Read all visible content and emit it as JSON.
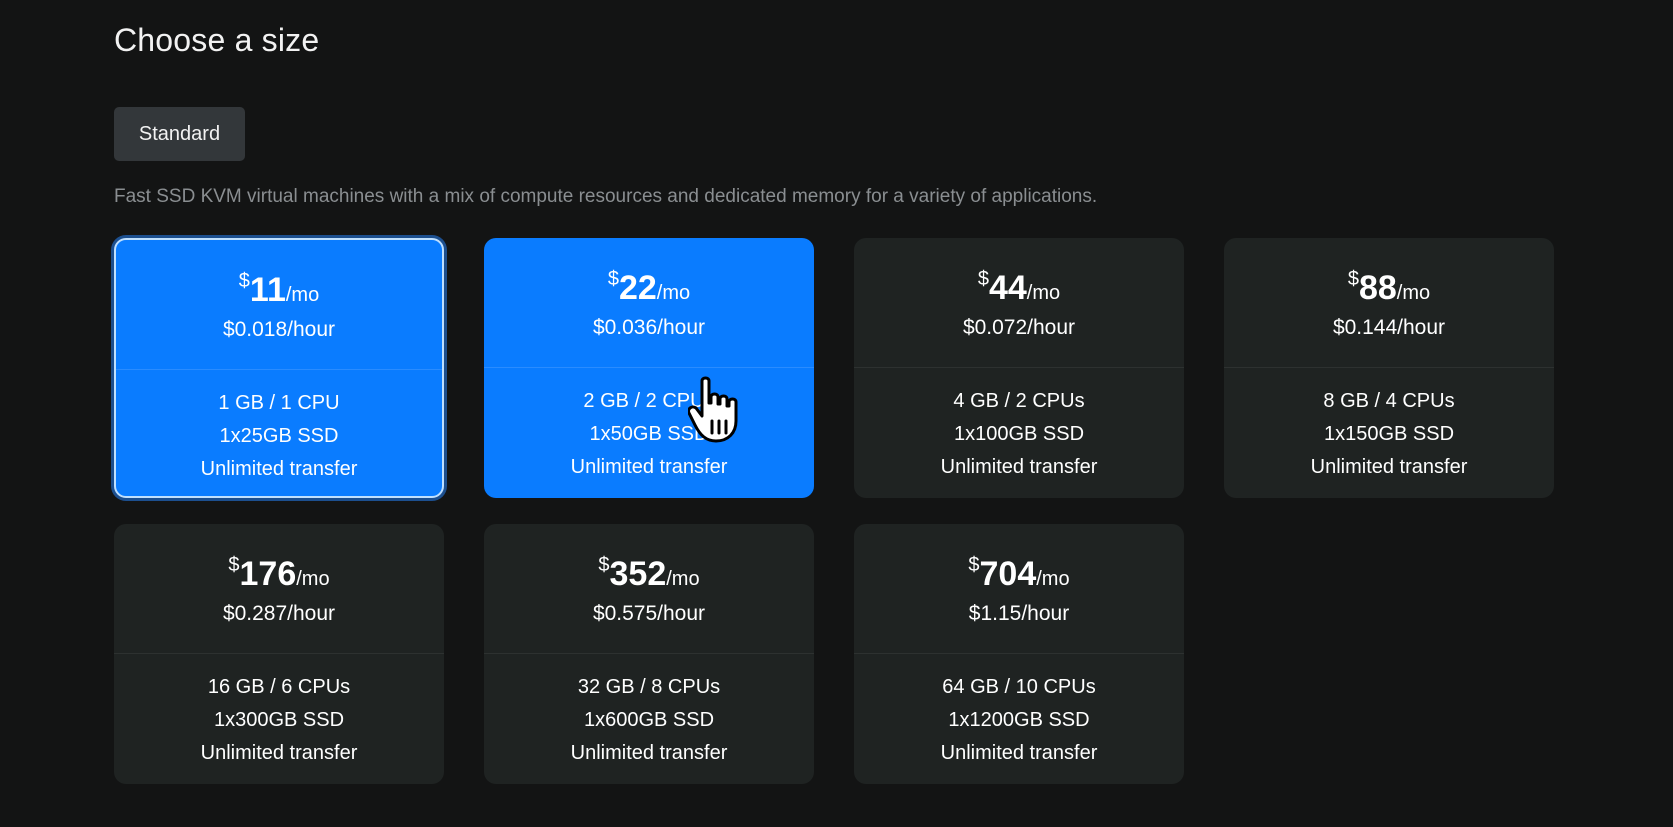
{
  "header": {
    "title": "Choose a size"
  },
  "tabs": [
    {
      "label": "Standard"
    }
  ],
  "description": "Fast SSD KVM virtual machines with a mix of compute resources and dedicated memory for a variety of applications.",
  "plans": [
    {
      "currency": "$",
      "amount": "11",
      "period": "/mo",
      "hourly": "$0.018/hour",
      "memory_cpu": "1 GB / 1 CPU",
      "disk": "1x25GB SSD",
      "transfer": "Unlimited transfer",
      "state": "selected"
    },
    {
      "currency": "$",
      "amount": "22",
      "period": "/mo",
      "hourly": "$0.036/hour",
      "memory_cpu": "2 GB / 2 CPUs",
      "disk": "1x50GB SSD",
      "transfer": "Unlimited transfer",
      "state": "hover"
    },
    {
      "currency": "$",
      "amount": "44",
      "period": "/mo",
      "hourly": "$0.072/hour",
      "memory_cpu": "4 GB / 2 CPUs",
      "disk": "1x100GB SSD",
      "transfer": "Unlimited transfer",
      "state": "default"
    },
    {
      "currency": "$",
      "amount": "88",
      "period": "/mo",
      "hourly": "$0.144/hour",
      "memory_cpu": "8 GB / 4 CPUs",
      "disk": "1x150GB SSD",
      "transfer": "Unlimited transfer",
      "state": "default"
    },
    {
      "currency": "$",
      "amount": "176",
      "period": "/mo",
      "hourly": "$0.287/hour",
      "memory_cpu": "16 GB / 6 CPUs",
      "disk": "1x300GB SSD",
      "transfer": "Unlimited transfer",
      "state": "default"
    },
    {
      "currency": "$",
      "amount": "352",
      "period": "/mo",
      "hourly": "$0.575/hour",
      "memory_cpu": "32 GB / 8 CPUs",
      "disk": "1x600GB SSD",
      "transfer": "Unlimited transfer",
      "state": "default"
    },
    {
      "currency": "$",
      "amount": "704",
      "period": "/mo",
      "hourly": "$1.15/hour",
      "memory_cpu": "64 GB / 10 CPUs",
      "disk": "1x1200GB SSD",
      "transfer": "Unlimited transfer",
      "state": "default"
    }
  ],
  "colors": {
    "background": "#131414",
    "card": "#1f2322",
    "accent": "#0a7cff",
    "tab": "#33373a",
    "muted_text": "#8a8e91"
  },
  "icons": {
    "cursor": "hand-pointer-icon"
  }
}
